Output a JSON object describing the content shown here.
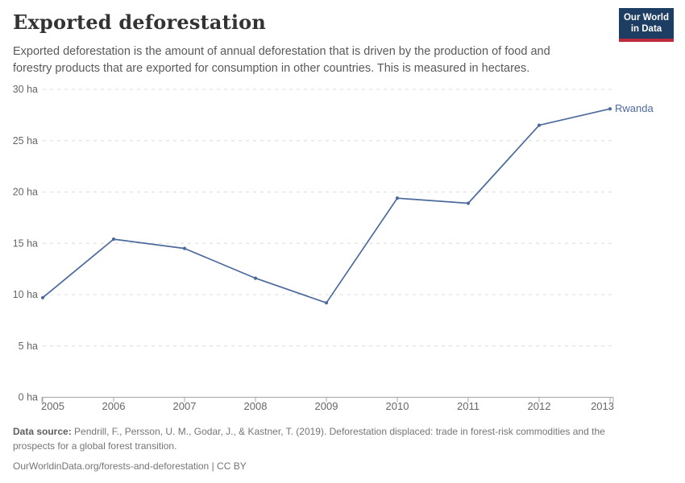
{
  "header": {
    "title": "Exported deforestation",
    "subtitle": "Exported deforestation is the amount of annual deforestation that is driven by the production of food and forestry products that are exported for consumption in other countries. This is measured in hectares.",
    "logo": {
      "line1": "Our World",
      "line2": "in Data"
    }
  },
  "colors": {
    "series_line": "#4c6a9c",
    "grid_line": "#dcdcdc",
    "axis_line": "#a5a5a5",
    "tick_text": "#666666",
    "logo_bg": "#1d3d63",
    "logo_accent": "#bf2b3e"
  },
  "chart_data": {
    "type": "line",
    "title": "Exported deforestation",
    "unit": "ha",
    "x": [
      2005,
      2006,
      2007,
      2008,
      2009,
      2010,
      2011,
      2012,
      2013
    ],
    "x_tick_labels": [
      "2005",
      "2006",
      "2007",
      "2008",
      "2009",
      "2010",
      "2011",
      "2012",
      "2013"
    ],
    "series": [
      {
        "name": "Rwanda",
        "color": "#4c6a9c",
        "values": [
          9.7,
          15.4,
          14.5,
          11.6,
          9.2,
          19.4,
          18.9,
          26.5,
          28.1
        ]
      }
    ],
    "ylim": [
      0,
      30
    ],
    "y_ticks": [
      0,
      5,
      10,
      15,
      20,
      25,
      30
    ],
    "y_tick_labels": [
      "0 ha",
      "5 ha",
      "10 ha",
      "15 ha",
      "20 ha",
      "25 ha",
      "30 ha"
    ],
    "grid": "horizontal-dashed",
    "legend_position": "label-at-line-end"
  },
  "footer": {
    "source_label": "Data source:",
    "source_text": "Pendrill, F., Persson, U. M., Godar, J., & Kastner, T. (2019). Deforestation displaced: trade in forest-risk commodities and the prospects for a global forest transition.",
    "link_text": "OurWorldinData.org/forests-and-deforestation",
    "separator": "|",
    "license_text": "CC BY"
  }
}
